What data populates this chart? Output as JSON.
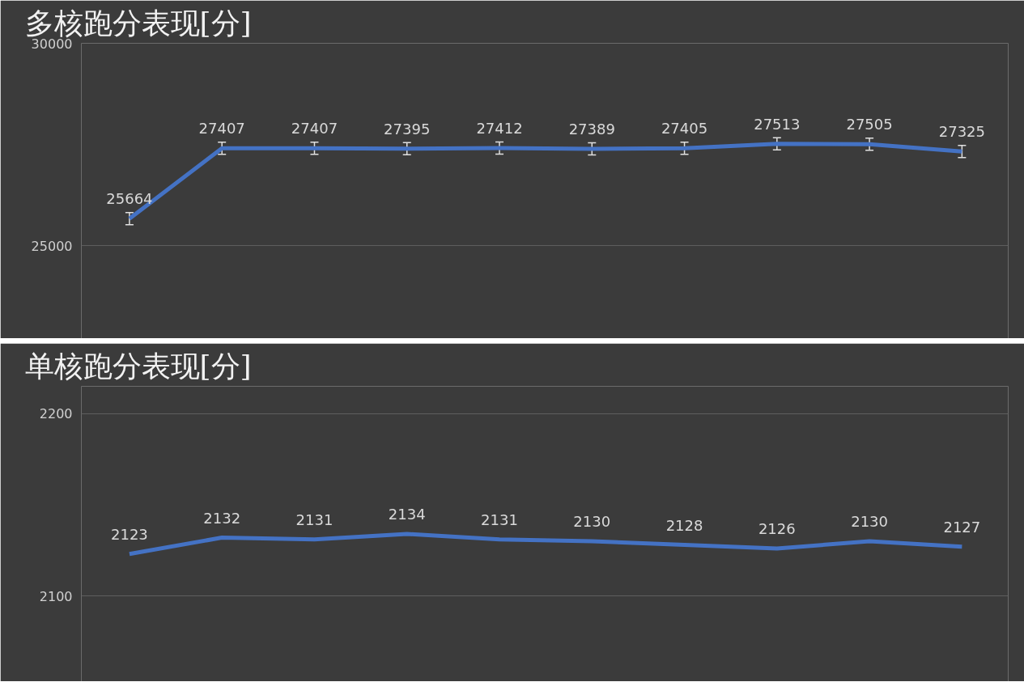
{
  "chart_data": [
    {
      "type": "line",
      "title": "多核跑分表现[分]",
      "categories": [
        null,
        null,
        null,
        null,
        null,
        null,
        null,
        null,
        null,
        null
      ],
      "series": [
        {
          "color": "#4472c4",
          "values": [
            25664,
            27407,
            27407,
            27395,
            27412,
            27389,
            27405,
            27513,
            27505,
            27325
          ],
          "errors": [
            150,
            150,
            150,
            150,
            150,
            150,
            150,
            150,
            150,
            150
          ]
        }
      ],
      "ylim": [
        22700,
        30000
      ],
      "yticks": [
        25000,
        30000
      ],
      "grid": "y",
      "data_labels": true,
      "tick_labels": "y"
    },
    {
      "type": "line",
      "title": "单核跑分表现[分]",
      "categories": [
        null,
        null,
        null,
        null,
        null,
        null,
        null,
        null,
        null,
        null
      ],
      "series": [
        {
          "color": "#4472c4",
          "values": [
            2123,
            2132,
            2131,
            2134,
            2131,
            2130,
            2128,
            2126,
            2130,
            2127
          ]
        }
      ],
      "ylim": [
        2053,
        2215
      ],
      "yticks": [
        2100,
        2200
      ],
      "grid": "y",
      "data_labels": true,
      "tick_labels": "y"
    }
  ]
}
